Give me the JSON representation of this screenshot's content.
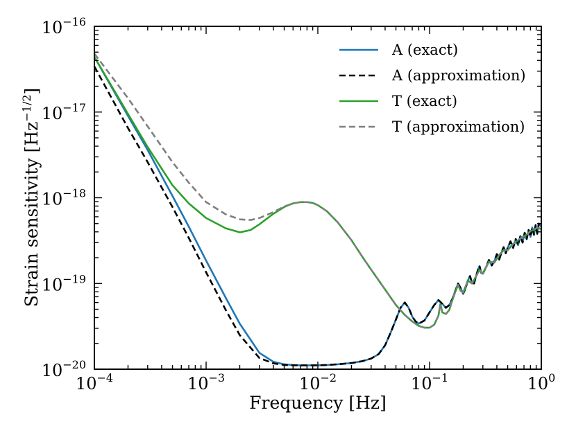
{
  "chart_data": {
    "type": "line",
    "xlabel": "Frequency [Hz]",
    "ylabel_main": "Strain sensitivity [Hz",
    "ylabel_sup": "−1/2",
    "ylabel_close": "]",
    "xscale": "log",
    "yscale": "log",
    "xlim": [
      0.0001,
      1
    ],
    "ylim": [
      1e-20,
      1e-16
    ],
    "grid": false,
    "legend_position": "upper-right",
    "x_ticks": [
      {
        "value": 0.0001,
        "base": "10",
        "exp": "−4"
      },
      {
        "value": 0.001,
        "base": "10",
        "exp": "−3"
      },
      {
        "value": 0.01,
        "base": "10",
        "exp": "−2"
      },
      {
        "value": 0.1,
        "base": "10",
        "exp": "−1"
      },
      {
        "value": 1,
        "base": "10",
        "exp": "0"
      }
    ],
    "y_ticks": [
      {
        "value": 1e-20,
        "base": "10",
        "exp": "−20"
      },
      {
        "value": 1e-19,
        "base": "10",
        "exp": "−19"
      },
      {
        "value": 1e-18,
        "base": "10",
        "exp": "−18"
      },
      {
        "value": 1e-17,
        "base": "10",
        "exp": "−17"
      },
      {
        "value": 1e-16,
        "base": "10",
        "exp": "−16"
      }
    ],
    "series": [
      {
        "name": "A (exact)",
        "color": "#1f77b4",
        "dash": "solid",
        "x": [
          0.0001,
          0.0002,
          0.0003,
          0.0005,
          0.0007,
          0.001,
          0.0015,
          0.002,
          0.003,
          0.004,
          0.005,
          0.006,
          0.007,
          0.008,
          0.01,
          0.012,
          0.015,
          0.02,
          0.025,
          0.03,
          0.035,
          0.04,
          0.045,
          0.05,
          0.055,
          0.06,
          0.065,
          0.07,
          0.075,
          0.08,
          0.09,
          0.1,
          0.11,
          0.12,
          0.13,
          0.14,
          0.15,
          0.16,
          0.17,
          0.18,
          0.19,
          0.2,
          0.21,
          0.22,
          0.23,
          0.24,
          0.25,
          0.26,
          0.27,
          0.28,
          0.29,
          0.3,
          0.32,
          0.34,
          0.36,
          0.38,
          0.4,
          0.42,
          0.44,
          0.46,
          0.48,
          0.5,
          0.53,
          0.56,
          0.59,
          0.62,
          0.65,
          0.68,
          0.71,
          0.74,
          0.77,
          0.8,
          0.83,
          0.86,
          0.89,
          0.92,
          0.95,
          1.0
        ],
        "y": [
          4.4e-17,
          9e-18,
          3.6e-18,
          1.05e-18,
          4.6e-19,
          1.85e-19,
          6.8e-20,
          3.4e-20,
          1.55e-20,
          1.22e-20,
          1.14e-20,
          1.12e-20,
          1.11e-20,
          1.11e-20,
          1.11e-20,
          1.12e-20,
          1.14e-20,
          1.18e-20,
          1.24e-20,
          1.33e-20,
          1.5e-20,
          1.9e-20,
          2.7e-20,
          3.8e-20,
          5.2e-20,
          6e-20,
          5.2e-20,
          4.1e-20,
          3.6e-20,
          3.4e-20,
          3.7e-20,
          4.6e-20,
          5.6e-20,
          6.4e-20,
          5.8e-20,
          5.2e-20,
          5.6e-20,
          6.6e-20,
          8.2e-20,
          1e-19,
          8.8e-20,
          7.6e-20,
          8.8e-20,
          1.08e-19,
          1.22e-19,
          1.02e-19,
          1e-19,
          1.2e-19,
          1.42e-19,
          1.6e-19,
          1.32e-19,
          1.3e-19,
          1.55e-19,
          1.88e-19,
          1.62e-19,
          1.82e-19,
          2.2e-19,
          1.9e-19,
          2.3e-19,
          2.65e-19,
          2.25e-19,
          2.6e-19,
          3.1e-19,
          2.6e-19,
          3.3e-19,
          2.8e-19,
          3.6e-19,
          3e-19,
          3.9e-19,
          3.3e-19,
          4.2e-19,
          3.5e-19,
          4.5e-19,
          3.7e-19,
          4.8e-19,
          3.8e-19,
          5e-19,
          4.6e-19
        ]
      },
      {
        "name": "A (approximation)",
        "color": "#000000",
        "dash": "dashed",
        "x": [
          0.0001,
          0.0002,
          0.0003,
          0.0005,
          0.0007,
          0.001,
          0.0015,
          0.002,
          0.003,
          0.004,
          0.005,
          0.006,
          0.007,
          0.008,
          0.01,
          0.012,
          0.015,
          0.02,
          0.025,
          0.03,
          0.035,
          0.04,
          0.045,
          0.05,
          0.055,
          0.06,
          0.065,
          0.07,
          0.075,
          0.08,
          0.09,
          0.1,
          0.11,
          0.12,
          0.13,
          0.14,
          0.15,
          0.16,
          0.17,
          0.18,
          0.19,
          0.2,
          0.21,
          0.22,
          0.23,
          0.24,
          0.25,
          0.26,
          0.27,
          0.28,
          0.29,
          0.3,
          0.32,
          0.34,
          0.36,
          0.38,
          0.4,
          0.42,
          0.44,
          0.46,
          0.48,
          0.5,
          0.53,
          0.56,
          0.59,
          0.62,
          0.65,
          0.68,
          0.71,
          0.74,
          0.77,
          0.8,
          0.83,
          0.86,
          0.89,
          0.92,
          0.95,
          1.0
        ],
        "y": [
          3.4e-17,
          6.5e-18,
          2.6e-18,
          7.8e-19,
          3.4e-19,
          1.35e-19,
          4.9e-20,
          2.5e-20,
          1.35e-20,
          1.17e-20,
          1.12e-20,
          1.11e-20,
          1.11e-20,
          1.11e-20,
          1.11e-20,
          1.12e-20,
          1.14e-20,
          1.18e-20,
          1.24e-20,
          1.33e-20,
          1.5e-20,
          1.9e-20,
          2.7e-20,
          3.8e-20,
          5.2e-20,
          6e-20,
          5.2e-20,
          4.1e-20,
          3.6e-20,
          3.4e-20,
          3.7e-20,
          4.6e-20,
          5.6e-20,
          6.4e-20,
          5.8e-20,
          5.2e-20,
          5.6e-20,
          6.6e-20,
          8.2e-20,
          1e-19,
          8.8e-20,
          7.6e-20,
          8.8e-20,
          1.08e-19,
          1.22e-19,
          1.02e-19,
          1e-19,
          1.2e-19,
          1.42e-19,
          1.6e-19,
          1.32e-19,
          1.3e-19,
          1.55e-19,
          1.88e-19,
          1.62e-19,
          1.82e-19,
          2.2e-19,
          1.9e-19,
          2.3e-19,
          2.65e-19,
          2.25e-19,
          2.6e-19,
          3.1e-19,
          2.6e-19,
          3.3e-19,
          2.8e-19,
          3.6e-19,
          3e-19,
          3.9e-19,
          3.3e-19,
          4.2e-19,
          3.5e-19,
          4.5e-19,
          3.7e-19,
          4.8e-19,
          3.8e-19,
          5e-19,
          4.6e-19
        ]
      },
      {
        "name": "T (exact)",
        "color": "#2ca02c",
        "dash": "solid",
        "x": [
          0.0001,
          0.0002,
          0.0003,
          0.0005,
          0.0007,
          0.001,
          0.0015,
          0.002,
          0.0025,
          0.003,
          0.004,
          0.005,
          0.006,
          0.007,
          0.008,
          0.009,
          0.01,
          0.012,
          0.015,
          0.02,
          0.025,
          0.03,
          0.04,
          0.05,
          0.06,
          0.07,
          0.08,
          0.09,
          0.1,
          0.11,
          0.12,
          0.125,
          0.13,
          0.14,
          0.15,
          0.16,
          0.17,
          0.18,
          0.19,
          0.2,
          0.22,
          0.24,
          0.26,
          0.28,
          0.3,
          0.34,
          0.38,
          0.42,
          0.46,
          0.5,
          0.56,
          0.62,
          0.68,
          0.74,
          0.8,
          0.86,
          0.92,
          1.0
        ],
        "y": [
          4.4e-17,
          9.5e-18,
          3.9e-18,
          1.4e-18,
          8.6e-19,
          5.8e-19,
          4.4e-19,
          3.95e-19,
          4.2e-19,
          4.9e-19,
          6.5e-19,
          7.8e-19,
          8.6e-19,
          8.9e-19,
          8.9e-19,
          8.7e-19,
          8.2e-19,
          7e-19,
          5.2e-19,
          3.2e-19,
          2.05e-19,
          1.45e-19,
          8.5e-20,
          5.6e-20,
          4.3e-20,
          3.6e-20,
          3.2e-20,
          3.05e-20,
          3.05e-20,
          3.3e-20,
          4.2e-20,
          5.8e-20,
          4.6e-20,
          4.4e-20,
          4.9e-20,
          6.4e-20,
          8e-20,
          9.6e-20,
          8.2e-20,
          7.8e-20,
          1.08e-19,
          1e-19,
          1.2e-19,
          1.45e-19,
          1.3e-19,
          1.8e-19,
          1.75e-19,
          2.15e-19,
          2.45e-19,
          2.45e-19,
          2.9e-19,
          3.2e-19,
          3.5e-19,
          3.7e-19,
          4.1e-19,
          4.2e-19,
          4.5e-19,
          4.3e-19
        ]
      },
      {
        "name": "T (approximation)",
        "color": "#7f7f7f",
        "dash": "dashed",
        "x": [
          0.0001,
          0.0002,
          0.0003,
          0.0005,
          0.0007,
          0.001,
          0.0015,
          0.002,
          0.0025,
          0.003,
          0.004,
          0.005,
          0.006,
          0.007,
          0.008,
          0.009,
          0.01,
          0.012,
          0.015,
          0.02,
          0.025,
          0.03,
          0.04,
          0.05,
          0.06,
          0.07,
          0.08,
          0.09,
          0.1,
          0.11,
          0.12,
          0.125,
          0.13,
          0.14,
          0.15,
          0.16,
          0.17,
          0.18,
          0.19,
          0.2,
          0.22,
          0.24,
          0.26,
          0.28,
          0.3,
          0.34,
          0.38,
          0.42,
          0.46,
          0.5,
          0.56,
          0.62,
          0.68,
          0.74,
          0.8,
          0.86,
          0.92,
          1.0
        ],
        "y": [
          4.8e-17,
          1.45e-17,
          6.8e-18,
          2.6e-18,
          1.5e-18,
          8.9e-19,
          6.4e-19,
          5.6e-19,
          5.5e-19,
          5.8e-19,
          6.8e-19,
          7.9e-19,
          8.6e-19,
          8.9e-19,
          8.9e-19,
          8.7e-19,
          8.2e-19,
          7e-19,
          5.2e-19,
          3.2e-19,
          2.05e-19,
          1.45e-19,
          8.5e-20,
          5.6e-20,
          4.3e-20,
          3.6e-20,
          3.2e-20,
          3.05e-20,
          3.05e-20,
          3.3e-20,
          4.2e-20,
          5.8e-20,
          4.6e-20,
          4.4e-20,
          4.9e-20,
          6.4e-20,
          8e-20,
          9.6e-20,
          8.2e-20,
          7.8e-20,
          1.08e-19,
          1e-19,
          1.2e-19,
          1.45e-19,
          1.3e-19,
          1.8e-19,
          1.75e-19,
          2.15e-19,
          2.45e-19,
          2.45e-19,
          2.9e-19,
          3.2e-19,
          3.5e-19,
          3.7e-19,
          4.1e-19,
          4.2e-19,
          4.5e-19,
          4.3e-19
        ]
      }
    ]
  }
}
